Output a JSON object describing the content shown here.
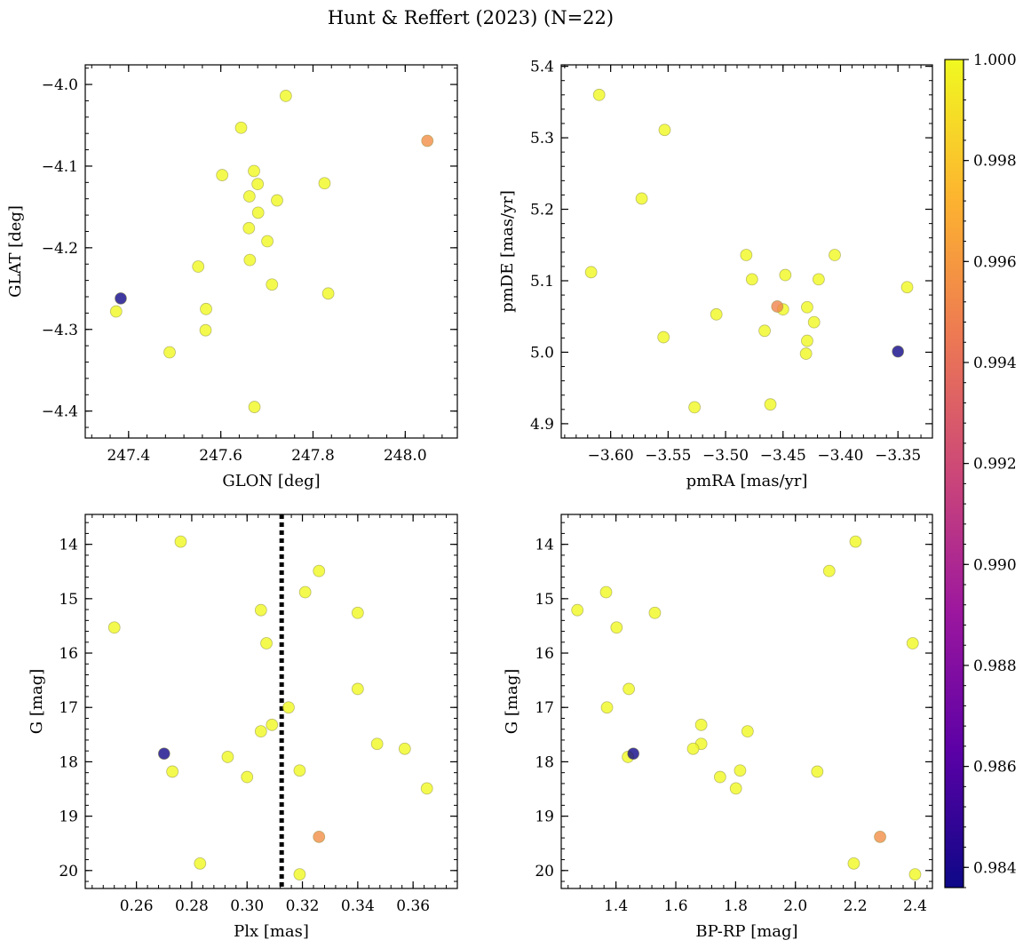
{
  "figure": {
    "title": "Hunt & Reffert (2023) (N=22)"
  },
  "colorbar": {
    "min": 0.9836,
    "max": 1.0,
    "ticks": [
      0.984,
      0.986,
      0.988,
      0.99,
      0.992,
      0.994,
      0.996,
      0.998,
      1.0
    ],
    "tick_labels": [
      "0.984",
      "0.986",
      "0.988",
      "0.990",
      "0.992",
      "0.994",
      "0.996",
      "0.998",
      "1.000"
    ],
    "colormap": "plasma",
    "colormap_stops": [
      "#0d0887",
      "#5c01a6",
      "#9c179e",
      "#cc4778",
      "#ed7953",
      "#fdb42f",
      "#f0f921"
    ],
    "point_alpha": 0.8
  },
  "chart_data": [
    {
      "type": "scatter",
      "id": "glon-glat",
      "xlabel": "GLON [deg]",
      "ylabel": "GLAT [deg]",
      "xlim": [
        247.306,
        248.113
      ],
      "ylim": [
        -4.433,
        -3.976
      ],
      "yinvert": false,
      "xticks": [
        247.4,
        247.6,
        247.8,
        248.0
      ],
      "xtick_labels": [
        "247.4",
        "247.6",
        "247.8",
        "248.0"
      ],
      "yticks": [
        -4.0,
        -4.1,
        -4.2,
        -4.3,
        -4.4
      ],
      "ytick_labels": [
        "−4.0",
        "−4.1",
        "−4.2",
        "−4.3",
        "−4.4"
      ],
      "points": [
        {
          "x": 247.741,
          "y": -4.014,
          "c": 1.0
        },
        {
          "x": 247.644,
          "y": -4.053,
          "c": 1.0
        },
        {
          "x": 248.048,
          "y": -4.069,
          "c": 0.9955
        },
        {
          "x": 247.672,
          "y": -4.106,
          "c": 1.0
        },
        {
          "x": 247.603,
          "y": -4.111,
          "c": 1.0
        },
        {
          "x": 247.825,
          "y": -4.121,
          "c": 1.0
        },
        {
          "x": 247.68,
          "y": -4.122,
          "c": 1.0
        },
        {
          "x": 247.662,
          "y": -4.137,
          "c": 1.0
        },
        {
          "x": 247.722,
          "y": -4.142,
          "c": 1.0
        },
        {
          "x": 247.681,
          "y": -4.157,
          "c": 1.0
        },
        {
          "x": 247.661,
          "y": -4.176,
          "c": 1.0
        },
        {
          "x": 247.701,
          "y": -4.192,
          "c": 1.0
        },
        {
          "x": 247.663,
          "y": -4.215,
          "c": 1.0
        },
        {
          "x": 247.551,
          "y": -4.223,
          "c": 1.0
        },
        {
          "x": 247.711,
          "y": -4.245,
          "c": 1.0
        },
        {
          "x": 247.833,
          "y": -4.256,
          "c": 1.0
        },
        {
          "x": 247.383,
          "y": -4.262,
          "c": 0.9837
        },
        {
          "x": 247.568,
          "y": -4.275,
          "c": 1.0
        },
        {
          "x": 247.373,
          "y": -4.278,
          "c": 1.0
        },
        {
          "x": 247.567,
          "y": -4.301,
          "c": 1.0
        },
        {
          "x": 247.489,
          "y": -4.328,
          "c": 1.0
        },
        {
          "x": 247.673,
          "y": -4.395,
          "c": 1.0
        }
      ]
    },
    {
      "type": "scatter",
      "id": "pmra-pmde",
      "xlabel": "pmRA [mas/yr]",
      "ylabel": "pmDE [mas/yr]",
      "xlim": [
        -3.643,
        -3.32
      ],
      "ylim": [
        4.88,
        5.402
      ],
      "yinvert": false,
      "xticks": [
        -3.6,
        -3.55,
        -3.5,
        -3.45,
        -3.4,
        -3.35
      ],
      "xtick_labels": [
        "−3.60",
        "−3.55",
        "−3.50",
        "−3.45",
        "−3.40",
        "−3.35"
      ],
      "yticks": [
        4.9,
        5.0,
        5.1,
        5.2,
        5.3,
        5.4
      ],
      "ytick_labels": [
        "4.9",
        "5.0",
        "5.1",
        "5.2",
        "5.3",
        "5.4"
      ],
      "points": [
        {
          "x": -3.61,
          "y": 5.36,
          "c": 1.0
        },
        {
          "x": -3.553,
          "y": 5.311,
          "c": 1.0
        },
        {
          "x": -3.573,
          "y": 5.215,
          "c": 1.0
        },
        {
          "x": -3.617,
          "y": 5.112,
          "c": 1.0
        },
        {
          "x": -3.405,
          "y": 5.136,
          "c": 1.0
        },
        {
          "x": -3.482,
          "y": 5.136,
          "c": 1.0
        },
        {
          "x": -3.448,
          "y": 5.108,
          "c": 1.0
        },
        {
          "x": -3.477,
          "y": 5.102,
          "c": 1.0
        },
        {
          "x": -3.419,
          "y": 5.102,
          "c": 1.0
        },
        {
          "x": -3.342,
          "y": 5.091,
          "c": 1.0
        },
        {
          "x": -3.455,
          "y": 5.064,
          "c": 0.995
        },
        {
          "x": -3.45,
          "y": 5.06,
          "c": 1.0
        },
        {
          "x": -3.429,
          "y": 5.063,
          "c": 1.0
        },
        {
          "x": -3.508,
          "y": 5.053,
          "c": 1.0
        },
        {
          "x": -3.423,
          "y": 5.042,
          "c": 1.0
        },
        {
          "x": -3.466,
          "y": 5.03,
          "c": 1.0
        },
        {
          "x": -3.554,
          "y": 5.021,
          "c": 1.0
        },
        {
          "x": -3.429,
          "y": 5.016,
          "c": 1.0
        },
        {
          "x": -3.43,
          "y": 4.998,
          "c": 1.0
        },
        {
          "x": -3.35,
          "y": 5.001,
          "c": 0.9837
        },
        {
          "x": -3.461,
          "y": 4.927,
          "c": 1.0
        },
        {
          "x": -3.527,
          "y": 4.923,
          "c": 1.0
        }
      ]
    },
    {
      "type": "scatter",
      "id": "plx-g",
      "xlabel": "Plx [mas]",
      "ylabel": "G [mag]",
      "xlim": [
        0.2415,
        0.376
      ],
      "ylim": [
        13.45,
        20.33
      ],
      "yinvert": true,
      "vline": {
        "x": 0.3125,
        "style": "dotted"
      },
      "xticks": [
        0.26,
        0.28,
        0.3,
        0.32,
        0.34,
        0.36
      ],
      "xtick_labels": [
        "0.26",
        "0.28",
        "0.30",
        "0.32",
        "0.34",
        "0.36"
      ],
      "yticks": [
        14,
        15,
        16,
        17,
        18,
        19,
        20
      ],
      "ytick_labels": [
        "14",
        "15",
        "16",
        "17",
        "18",
        "19",
        "20"
      ],
      "points": [
        {
          "x": 0.276,
          "y": 13.95,
          "c": 1.0
        },
        {
          "x": 0.326,
          "y": 14.49,
          "c": 1.0
        },
        {
          "x": 0.321,
          "y": 14.88,
          "c": 1.0
        },
        {
          "x": 0.305,
          "y": 15.21,
          "c": 1.0
        },
        {
          "x": 0.34,
          "y": 15.26,
          "c": 1.0
        },
        {
          "x": 0.252,
          "y": 15.53,
          "c": 1.0
        },
        {
          "x": 0.307,
          "y": 15.82,
          "c": 1.0
        },
        {
          "x": 0.34,
          "y": 16.66,
          "c": 1.0
        },
        {
          "x": 0.315,
          "y": 17.0,
          "c": 1.0
        },
        {
          "x": 0.309,
          "y": 17.32,
          "c": 1.0
        },
        {
          "x": 0.305,
          "y": 17.44,
          "c": 1.0
        },
        {
          "x": 0.347,
          "y": 17.67,
          "c": 1.0
        },
        {
          "x": 0.357,
          "y": 17.76,
          "c": 1.0
        },
        {
          "x": 0.27,
          "y": 17.85,
          "c": 0.9837
        },
        {
          "x": 0.293,
          "y": 17.91,
          "c": 1.0
        },
        {
          "x": 0.273,
          "y": 18.18,
          "c": 1.0
        },
        {
          "x": 0.319,
          "y": 18.16,
          "c": 1.0
        },
        {
          "x": 0.3,
          "y": 18.28,
          "c": 1.0
        },
        {
          "x": 0.365,
          "y": 18.49,
          "c": 1.0
        },
        {
          "x": 0.326,
          "y": 19.38,
          "c": 0.9955
        },
        {
          "x": 0.283,
          "y": 19.87,
          "c": 1.0
        },
        {
          "x": 0.319,
          "y": 20.07,
          "c": 1.0
        }
      ]
    },
    {
      "type": "scatter",
      "id": "bprp-g",
      "xlabel": "BP-RP [mag]",
      "ylabel": "G [mag]",
      "xlim": [
        1.217,
        2.458
      ],
      "ylim": [
        13.45,
        20.33
      ],
      "yinvert": true,
      "xticks": [
        1.4,
        1.6,
        1.8,
        2.0,
        2.2,
        2.4
      ],
      "xtick_labels": [
        "1.4",
        "1.6",
        "1.8",
        "2.0",
        "2.2",
        "2.4"
      ],
      "yticks": [
        14,
        15,
        16,
        17,
        18,
        19,
        20
      ],
      "ytick_labels": [
        "14",
        "15",
        "16",
        "17",
        "18",
        "19",
        "20"
      ],
      "points": [
        {
          "x": 2.201,
          "y": 13.95,
          "c": 1.0
        },
        {
          "x": 2.113,
          "y": 14.49,
          "c": 1.0
        },
        {
          "x": 1.367,
          "y": 14.88,
          "c": 1.0
        },
        {
          "x": 1.271,
          "y": 15.21,
          "c": 1.0
        },
        {
          "x": 1.53,
          "y": 15.26,
          "c": 1.0
        },
        {
          "x": 1.402,
          "y": 15.53,
          "c": 1.0
        },
        {
          "x": 2.392,
          "y": 15.82,
          "c": 1.0
        },
        {
          "x": 1.443,
          "y": 16.66,
          "c": 1.0
        },
        {
          "x": 1.37,
          "y": 17.0,
          "c": 1.0
        },
        {
          "x": 1.685,
          "y": 17.32,
          "c": 1.0
        },
        {
          "x": 1.84,
          "y": 17.44,
          "c": 1.0
        },
        {
          "x": 1.685,
          "y": 17.67,
          "c": 1.0
        },
        {
          "x": 1.658,
          "y": 17.76,
          "c": 1.0
        },
        {
          "x": 1.458,
          "y": 17.85,
          "c": 0.9837
        },
        {
          "x": 1.44,
          "y": 17.91,
          "c": 1.0
        },
        {
          "x": 2.073,
          "y": 18.18,
          "c": 1.0
        },
        {
          "x": 1.815,
          "y": 18.16,
          "c": 1.0
        },
        {
          "x": 1.748,
          "y": 18.28,
          "c": 1.0
        },
        {
          "x": 1.801,
          "y": 18.49,
          "c": 1.0
        },
        {
          "x": 2.283,
          "y": 19.38,
          "c": 0.9955
        },
        {
          "x": 2.195,
          "y": 19.87,
          "c": 1.0
        },
        {
          "x": 2.4,
          "y": 20.07,
          "c": 1.0
        }
      ]
    }
  ]
}
